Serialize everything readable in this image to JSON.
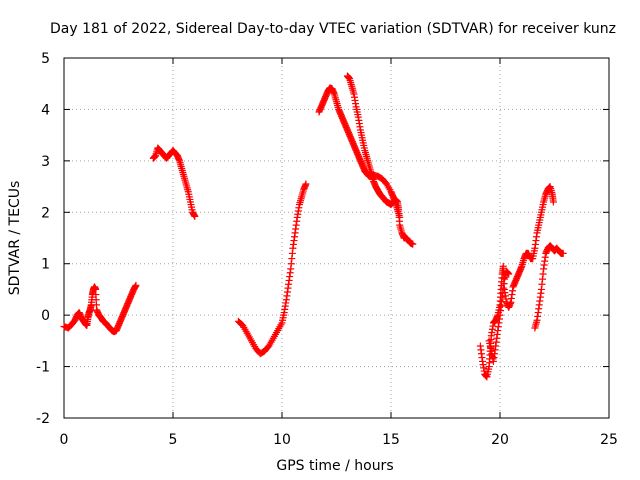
{
  "chart_data": {
    "type": "scatter",
    "title": "Day 181 of 2022, Sidereal Day-to-day VTEC variation (SDTVAR) for receiver kunz",
    "xlabel": "GPS time / hours",
    "ylabel": "SDTVAR / TECUs",
    "xlim": [
      0,
      25
    ],
    "ylim": [
      -2,
      5
    ],
    "xticks": [
      "0",
      "5",
      "10",
      "15",
      "20",
      "25"
    ],
    "yticks": [
      "-2",
      "-1",
      "0",
      "1",
      "2",
      "3",
      "4",
      "5"
    ],
    "grid": true,
    "marker": "+",
    "color": "#ff0000",
    "series": [
      {
        "segments": [
          [
            [
              0.0,
              -0.22
            ],
            [
              0.2,
              -0.25
            ],
            [
              0.35,
              -0.18
            ],
            [
              0.5,
              -0.1
            ],
            [
              0.6,
              0.0
            ],
            [
              0.7,
              0.05
            ],
            [
              0.8,
              -0.05
            ],
            [
              0.9,
              -0.12
            ],
            [
              1.0,
              -0.18
            ],
            [
              1.05,
              -0.2
            ],
            [
              1.1,
              -0.05
            ],
            [
              1.15,
              0.05
            ],
            [
              1.2,
              0.1
            ],
            [
              1.25,
              0.2
            ],
            [
              1.3,
              0.4
            ],
            [
              1.35,
              0.5
            ],
            [
              1.4,
              0.55
            ],
            [
              1.45,
              0.5
            ],
            [
              1.5,
              0.1
            ],
            [
              1.6,
              0.0
            ],
            [
              1.7,
              -0.05
            ],
            [
              1.8,
              -0.12
            ],
            [
              1.9,
              -0.15
            ],
            [
              2.0,
              -0.2
            ],
            [
              2.1,
              -0.25
            ],
            [
              2.2,
              -0.3
            ],
            [
              2.3,
              -0.32
            ],
            [
              2.4,
              -0.3
            ],
            [
              2.5,
              -0.2
            ],
            [
              2.6,
              -0.1
            ],
            [
              2.7,
              0.0
            ],
            [
              2.8,
              0.1
            ],
            [
              2.9,
              0.2
            ],
            [
              3.0,
              0.3
            ],
            [
              3.1,
              0.4
            ],
            [
              3.2,
              0.5
            ],
            [
              3.3,
              0.58
            ]
          ],
          [
            [
              4.1,
              3.05
            ],
            [
              4.2,
              3.1
            ],
            [
              4.3,
              3.25
            ],
            [
              4.4,
              3.2
            ],
            [
              4.5,
              3.15
            ],
            [
              4.6,
              3.1
            ],
            [
              4.7,
              3.05
            ],
            [
              4.8,
              3.1
            ],
            [
              4.9,
              3.15
            ],
            [
              5.0,
              3.2
            ],
            [
              5.1,
              3.15
            ],
            [
              5.2,
              3.1
            ],
            [
              5.3,
              3.0
            ],
            [
              5.4,
              2.85
            ],
            [
              5.5,
              2.7
            ],
            [
              5.6,
              2.55
            ],
            [
              5.7,
              2.4
            ],
            [
              5.8,
              2.2
            ],
            [
              5.9,
              2.0
            ],
            [
              6.0,
              1.92
            ]
          ],
          [
            [
              8.0,
              -0.12
            ],
            [
              8.2,
              -0.2
            ],
            [
              8.4,
              -0.35
            ],
            [
              8.6,
              -0.5
            ],
            [
              8.8,
              -0.65
            ],
            [
              9.0,
              -0.75
            ],
            [
              9.2,
              -0.7
            ],
            [
              9.4,
              -0.6
            ],
            [
              9.6,
              -0.45
            ],
            [
              9.8,
              -0.3
            ],
            [
              10.0,
              -0.15
            ],
            [
              10.1,
              0.05
            ],
            [
              10.2,
              0.3
            ],
            [
              10.3,
              0.6
            ],
            [
              10.4,
              0.9
            ],
            [
              10.5,
              1.3
            ],
            [
              10.6,
              1.6
            ],
            [
              10.7,
              1.9
            ],
            [
              10.8,
              2.15
            ],
            [
              10.9,
              2.3
            ],
            [
              11.0,
              2.45
            ],
            [
              11.1,
              2.55
            ]
          ],
          [
            [
              11.7,
              3.95
            ],
            [
              11.8,
              4.05
            ],
            [
              11.9,
              4.15
            ],
            [
              12.0,
              4.25
            ],
            [
              12.1,
              4.35
            ],
            [
              12.2,
              4.42
            ],
            [
              12.3,
              4.4
            ],
            [
              12.4,
              4.3
            ],
            [
              12.5,
              4.15
            ],
            [
              12.6,
              4.0
            ],
            [
              12.7,
              3.9
            ],
            [
              12.8,
              3.8
            ],
            [
              12.9,
              3.7
            ],
            [
              13.0,
              3.6
            ],
            [
              13.1,
              3.5
            ],
            [
              13.2,
              3.4
            ],
            [
              13.3,
              3.3
            ],
            [
              13.4,
              3.2
            ],
            [
              13.5,
              3.1
            ],
            [
              13.6,
              3.0
            ],
            [
              13.7,
              2.9
            ],
            [
              13.8,
              2.8
            ],
            [
              13.9,
              2.75
            ],
            [
              14.0,
              2.7
            ],
            [
              14.2,
              2.72
            ],
            [
              14.4,
              2.7
            ],
            [
              14.6,
              2.65
            ],
            [
              14.8,
              2.55
            ],
            [
              15.0,
              2.4
            ],
            [
              15.1,
              2.3
            ],
            [
              15.2,
              2.2
            ],
            [
              15.3,
              2.05
            ],
            [
              15.4,
              1.9
            ]
          ],
          [
            [
              13.0,
              4.65
            ],
            [
              13.1,
              4.6
            ],
            [
              13.2,
              4.45
            ],
            [
              13.3,
              4.3
            ],
            [
              13.4,
              4.05
            ],
            [
              13.5,
              3.85
            ],
            [
              13.6,
              3.6
            ],
            [
              13.7,
              3.4
            ],
            [
              13.8,
              3.2
            ],
            [
              13.9,
              3.05
            ],
            [
              14.0,
              2.9
            ],
            [
              14.1,
              2.75
            ],
            [
              14.2,
              2.6
            ],
            [
              14.3,
              2.5
            ],
            [
              14.4,
              2.42
            ],
            [
              14.5,
              2.35
            ],
            [
              14.6,
              2.3
            ],
            [
              14.7,
              2.25
            ],
            [
              14.8,
              2.2
            ],
            [
              14.9,
              2.18
            ],
            [
              15.0,
              2.15
            ],
            [
              15.1,
              2.2
            ],
            [
              15.2,
              2.25
            ],
            [
              15.3,
              2.2
            ],
            [
              15.35,
              2.05
            ],
            [
              15.4,
              1.75
            ],
            [
              15.5,
              1.6
            ],
            [
              15.6,
              1.5
            ],
            [
              15.7,
              1.5
            ],
            [
              15.8,
              1.45
            ],
            [
              15.9,
              1.4
            ],
            [
              16.0,
              1.38
            ]
          ],
          [
            [
              19.1,
              -0.6
            ],
            [
              19.2,
              -0.9
            ],
            [
              19.3,
              -1.15
            ],
            [
              19.4,
              -1.2
            ],
            [
              19.5,
              -1.0
            ],
            [
              19.55,
              -0.7
            ],
            [
              19.6,
              -0.4
            ],
            [
              19.7,
              -0.15
            ],
            [
              19.8,
              -0.1
            ],
            [
              19.9,
              0.0
            ],
            [
              20.0,
              0.2
            ],
            [
              20.05,
              0.5
            ],
            [
              20.1,
              0.8
            ],
            [
              20.15,
              0.95
            ],
            [
              20.2,
              0.5
            ],
            [
              20.3,
              0.25
            ],
            [
              20.4,
              0.15
            ],
            [
              20.5,
              0.25
            ],
            [
              20.6,
              0.55
            ],
            [
              20.7,
              0.65
            ],
            [
              20.8,
              0.75
            ],
            [
              20.9,
              0.85
            ],
            [
              21.0,
              0.95
            ],
            [
              21.1,
              1.1
            ],
            [
              21.2,
              1.2
            ],
            [
              21.3,
              1.2
            ],
            [
              21.4,
              1.1
            ],
            [
              21.5,
              1.1
            ],
            [
              21.6,
              1.3
            ],
            [
              21.7,
              1.6
            ],
            [
              21.8,
              1.8
            ],
            [
              21.9,
              2.0
            ],
            [
              22.0,
              2.2
            ],
            [
              22.1,
              2.35
            ],
            [
              22.2,
              2.45
            ],
            [
              22.3,
              2.5
            ],
            [
              22.4,
              2.35
            ],
            [
              22.45,
              2.2
            ]
          ],
          [
            [
              19.5,
              -0.5
            ],
            [
              19.6,
              -0.7
            ],
            [
              19.7,
              -0.9
            ],
            [
              19.8,
              -0.6
            ],
            [
              19.9,
              -0.3
            ],
            [
              20.0,
              0.0
            ],
            [
              20.1,
              0.35
            ],
            [
              20.2,
              0.7
            ],
            [
              20.3,
              0.85
            ],
            [
              20.4,
              0.8
            ]
          ],
          [
            [
              21.6,
              -0.25
            ],
            [
              21.7,
              -0.1
            ],
            [
              21.8,
              0.2
            ],
            [
              21.9,
              0.5
            ],
            [
              22.0,
              0.9
            ],
            [
              22.1,
              1.2
            ],
            [
              22.2,
              1.3
            ],
            [
              22.3,
              1.35
            ],
            [
              22.4,
              1.3
            ],
            [
              22.5,
              1.25
            ],
            [
              22.6,
              1.3
            ],
            [
              22.7,
              1.25
            ],
            [
              22.8,
              1.2
            ],
            [
              22.9,
              1.2
            ]
          ]
        ]
      }
    ]
  }
}
